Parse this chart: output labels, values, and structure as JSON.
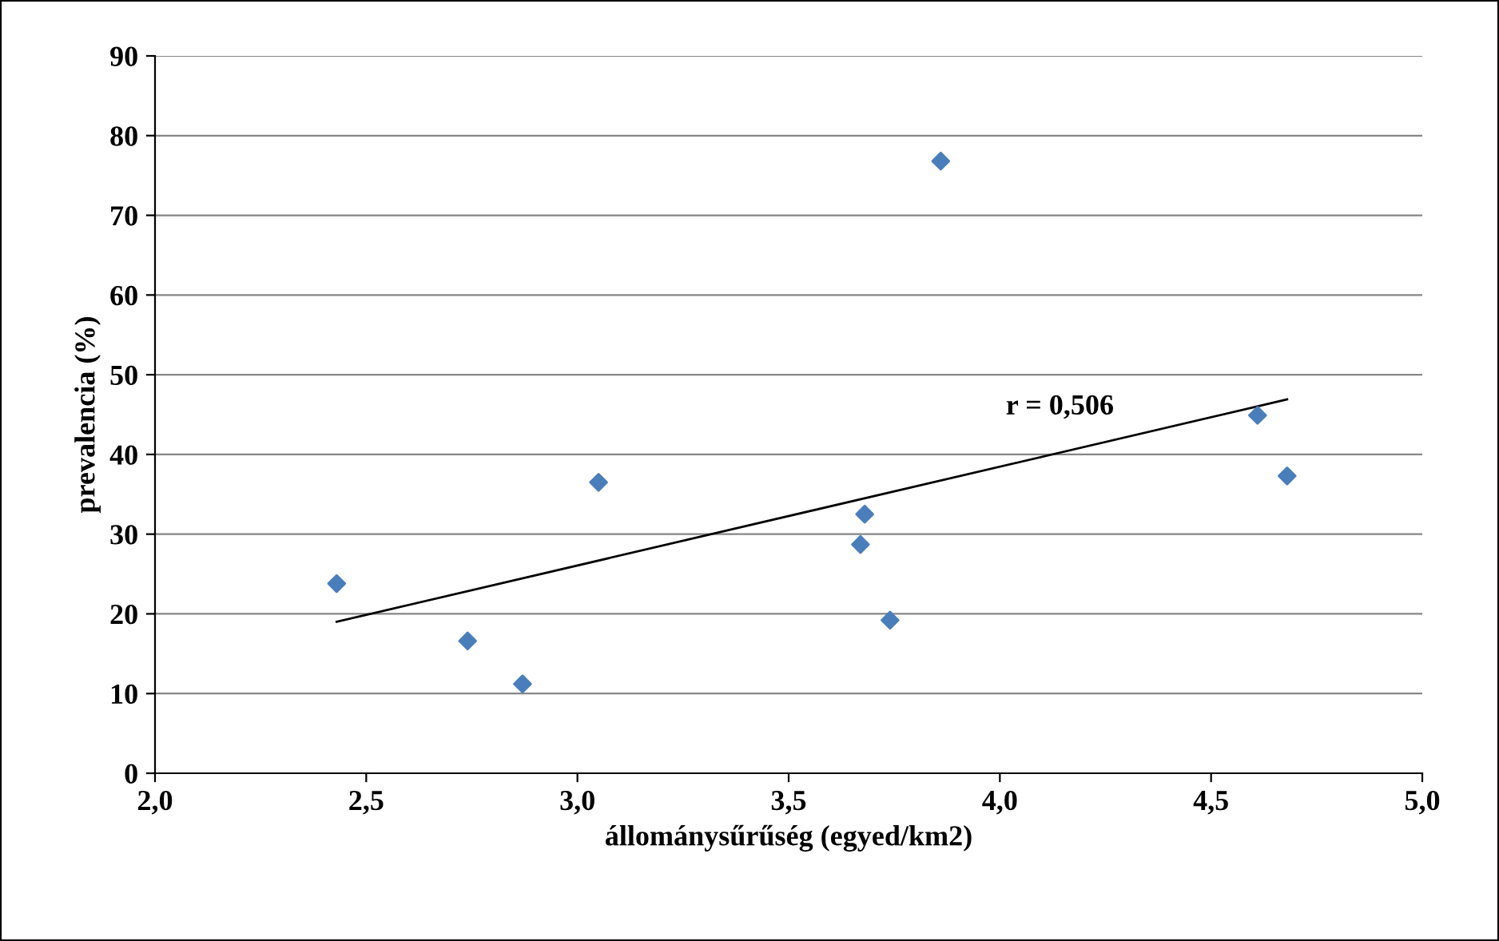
{
  "chart_data": {
    "type": "scatter",
    "xlabel": "állománysűrűség (egyed/km2)",
    "ylabel": "prevalencia (%)",
    "x": [
      2.43,
      2.74,
      2.87,
      3.05,
      3.67,
      3.68,
      3.74,
      3.86,
      4.61,
      4.68
    ],
    "series": [
      {
        "color": "#4a7ebb",
        "values": [
          23.8,
          16.6,
          11.2,
          36.5,
          28.7,
          32.5,
          19.2,
          76.8,
          44.9,
          37.3
        ],
        "marker": "diamond"
      },
      {
        "type": "line",
        "color": "#000000",
        "x": [
          2.43,
          4.68
        ],
        "values": [
          19.0,
          46.9
        ],
        "marker": "none"
      }
    ],
    "annotations": [
      "r = 0,506"
    ],
    "xlim": [
      2.0,
      5.0
    ],
    "xticks": [
      {
        "value": 2.0,
        "label": "2,0"
      },
      {
        "value": 2.5,
        "label": "2,5"
      },
      {
        "value": 3.0,
        "label": "3,0"
      },
      {
        "value": 3.5,
        "label": "3,5"
      },
      {
        "value": 4.0,
        "label": "4,0"
      },
      {
        "value": 4.5,
        "label": "4,5"
      },
      {
        "value": 5.0,
        "label": "5,0"
      }
    ],
    "ylim": [
      0,
      90
    ],
    "yticks": [
      0,
      10,
      20,
      30,
      40,
      50,
      60,
      70,
      80,
      90
    ],
    "grid": "y",
    "legend": false
  }
}
